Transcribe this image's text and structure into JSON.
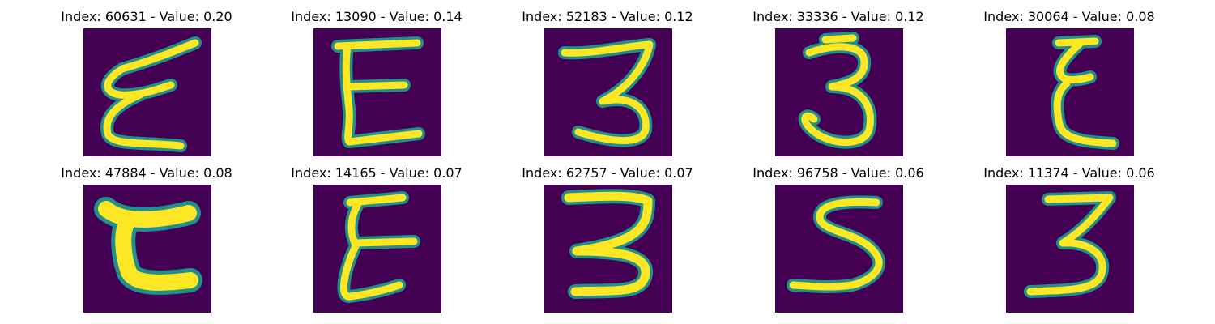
{
  "colors": {
    "background": "#440154",
    "mid": "#21908c",
    "stroke": "#fde725"
  },
  "grid": [
    {
      "title": "Index: 60631 - Value: 0.20",
      "digit_shape": "script-E"
    },
    {
      "title": "Index: 13090 - Value: 0.14",
      "digit_shape": "E"
    },
    {
      "title": "Index: 52183 - Value: 0.12",
      "digit_shape": "3"
    },
    {
      "title": "Index: 33336 - Value: 0.12",
      "digit_shape": "3"
    },
    {
      "title": "Index: 30064 - Value: 0.08",
      "digit_shape": "script-E"
    },
    {
      "title": "Index: 47884 - Value: 0.08",
      "digit_shape": "thick-E"
    },
    {
      "title": "Index: 14165 - Value: 0.07",
      "digit_shape": "E"
    },
    {
      "title": "Index: 62757 - Value: 0.07",
      "digit_shape": "3"
    },
    {
      "title": "Index: 96758 - Value: 0.06",
      "digit_shape": "5"
    },
    {
      "title": "Index: 11374 - Value: 0.06",
      "digit_shape": "3"
    }
  ]
}
